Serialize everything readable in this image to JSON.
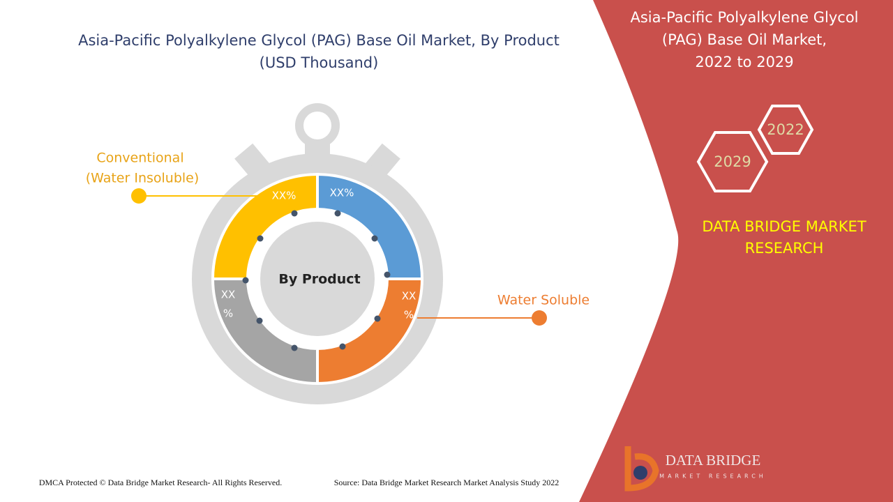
{
  "header": {
    "title": [
      "Asia-Pacific Polyalkylene Glycol (PAG) Base Oil Market, By Product",
      "(USD Thousand)"
    ]
  },
  "donut": {
    "center_label": "By Product",
    "segments": [
      {
        "name": "Conventional (Water Insoluble)",
        "label": [
          "XX%"
        ]
      },
      {
        "name": "Blue segment",
        "label": [
          "XX%"
        ]
      },
      {
        "name": "Water Soluble",
        "label": [
          "XX",
          "%"
        ]
      },
      {
        "name": "Gray segment",
        "label": [
          "XX",
          "%"
        ]
      }
    ]
  },
  "callouts": [
    {
      "label": [
        "Conventional",
        "(Water Insoluble)"
      ]
    },
    {
      "label": [
        "Water Soluble"
      ]
    }
  ],
  "panel": {
    "title": [
      "Asia-Pacific Polyalkylene Glycol",
      "(PAG) Base Oil Market,",
      "2022 to 2029"
    ],
    "years": [
      "2022",
      "2029"
    ],
    "brand": [
      "DATA BRIDGE MARKET",
      "RESEARCH"
    ]
  },
  "logo": {
    "name": "DATA BRIDGE",
    "tagline": "MARKET RESEARCH"
  },
  "footer": {
    "copyright": "DMCA Protected © Data Bridge Market Research- All Rights Reserved.",
    "source": "Source: Data Bridge Market Research Market Analysis Study 2022"
  }
}
